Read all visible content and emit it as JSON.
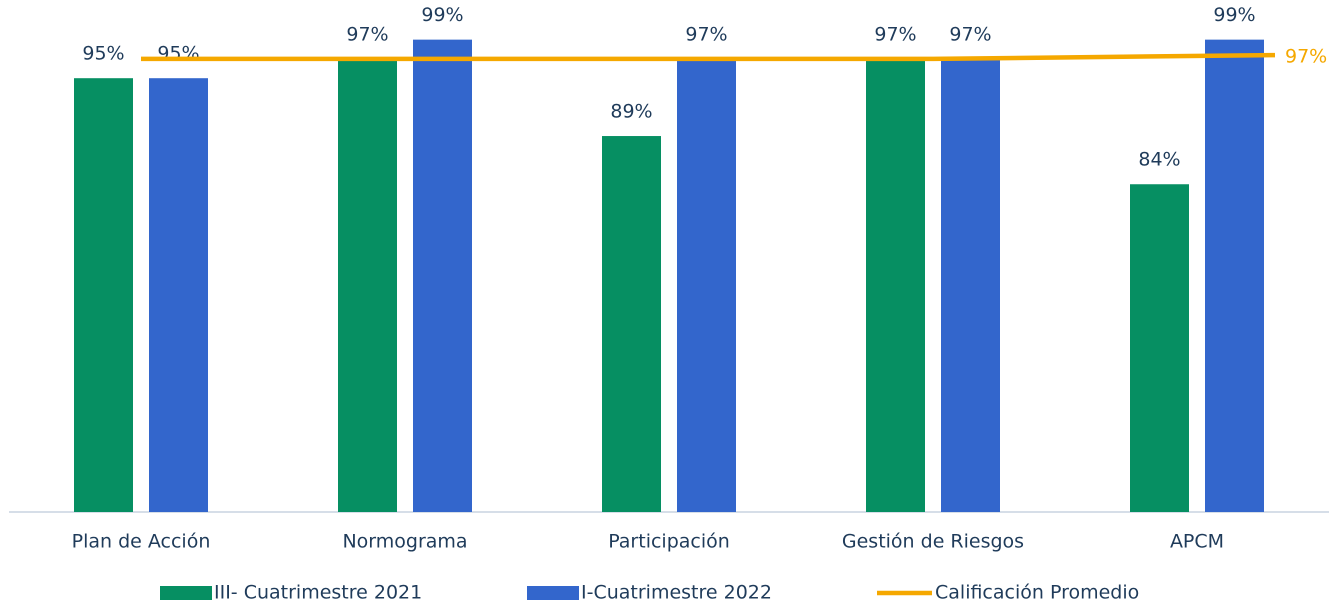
{
  "chart_data": {
    "type": "bar",
    "categories": [
      "Plan de Acción",
      "Normograma",
      "Participación",
      "Gestión de Riesgos",
      "APCM"
    ],
    "ylim": [
      50,
      100
    ],
    "series": [
      {
        "name": "III- Cuatrimestre 2021",
        "type": "bar",
        "color": "#068f62",
        "values": [
          95,
          97,
          89,
          97,
          84
        ],
        "value_labels": [
          "95%",
          "97%",
          "89%",
          "97%",
          "84%"
        ]
      },
      {
        "name": "I-Cuatrimestre 2022",
        "type": "bar",
        "color": "#3366cc",
        "values": [
          95,
          99,
          97,
          97,
          99
        ],
        "value_labels": [
          "95%",
          "99%",
          "97%",
          "97%",
          "99%"
        ]
      },
      {
        "name": "Calificación Promedio",
        "type": "line",
        "color": "#f5a800",
        "values": [
          97,
          97,
          97,
          97,
          97.4
        ],
        "value_labels": [
          null,
          null,
          null,
          null,
          "97%"
        ]
      }
    ]
  }
}
